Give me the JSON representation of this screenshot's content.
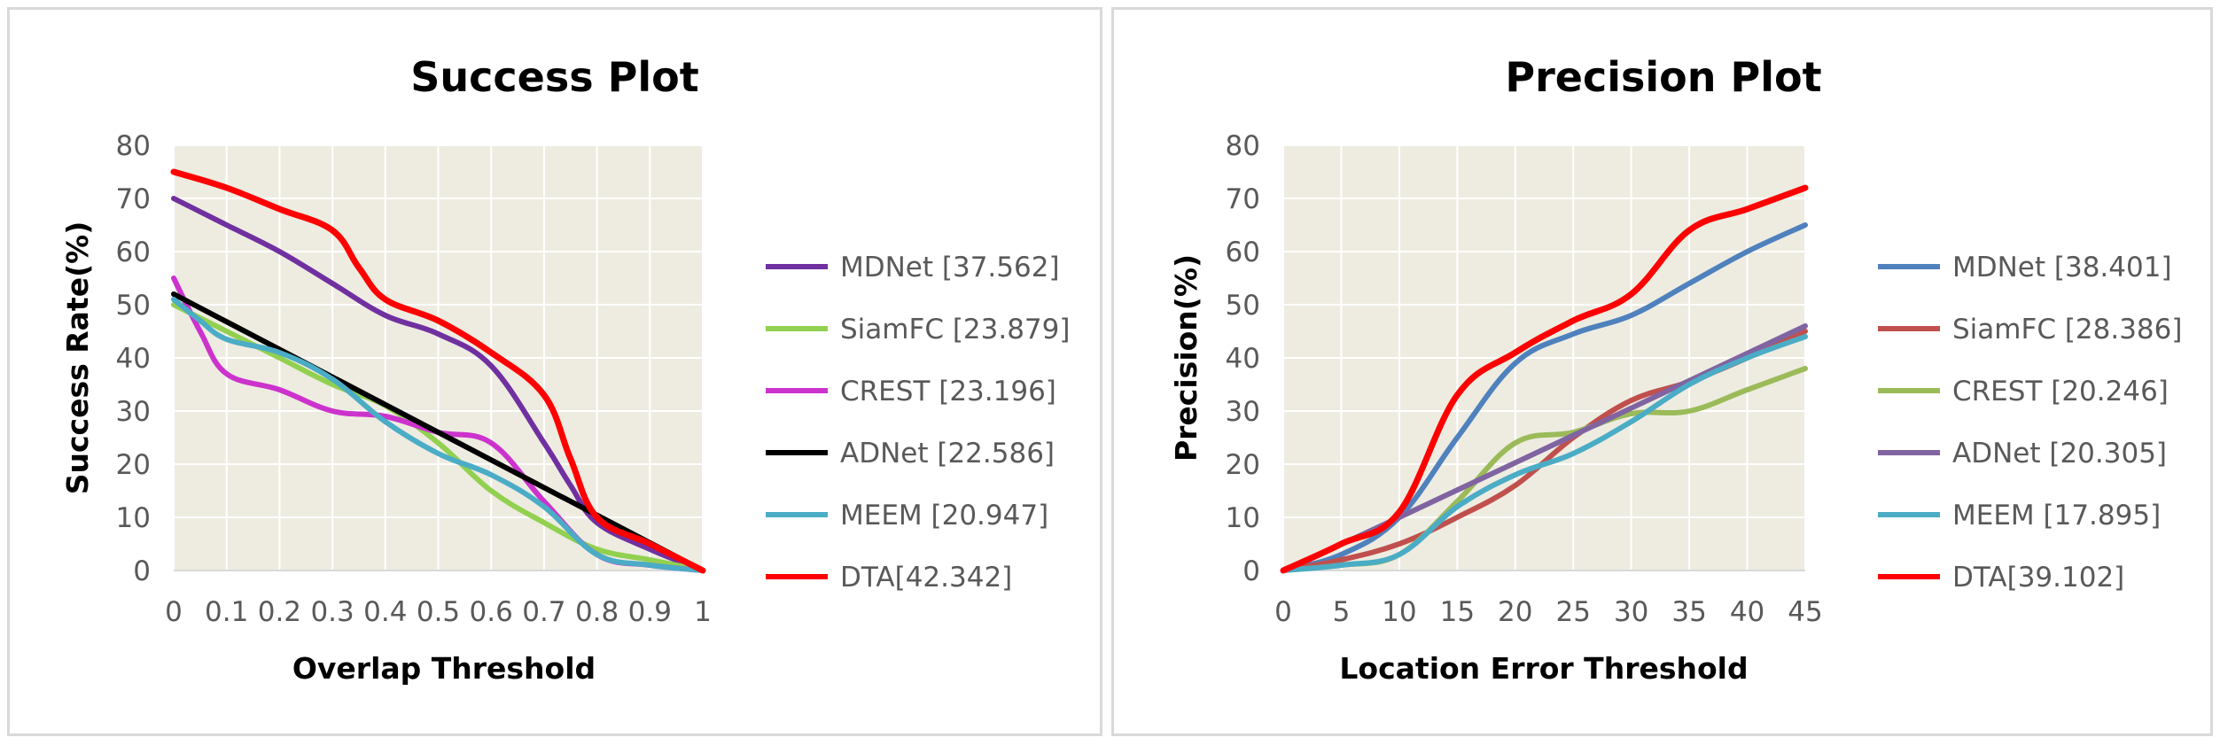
{
  "chart_data": [
    {
      "type": "line",
      "title": "Success Plot",
      "xlabel": "Overlap Threshold",
      "ylabel": "Success Rate(%)",
      "x_ticks": [
        "0",
        "0.1",
        "0.2",
        "0.3",
        "0.4",
        "0.5",
        "0.6",
        "0.7",
        "0.8",
        "0.9",
        "1"
      ],
      "y_ticks": [
        "0",
        "10",
        "20",
        "30",
        "40",
        "50",
        "60",
        "70",
        "80"
      ],
      "xlim": [
        0,
        1
      ],
      "ylim": [
        0,
        80
      ],
      "grid": true,
      "legend": "right",
      "plot_background": "#eeece1",
      "series": [
        {
          "name": "MDNet [37.562]",
          "color": "#7030a0",
          "x": [
            0,
            0.05,
            0.1,
            0.2,
            0.3,
            0.4,
            0.5,
            0.6,
            0.7,
            0.75,
            0.8,
            0.9,
            1
          ],
          "y": [
            70,
            67.5,
            65,
            60,
            54,
            48,
            44.5,
            38.5,
            24,
            16,
            9,
            4,
            0
          ]
        },
        {
          "name": "SiamFC [23.879]",
          "color": "#92d050",
          "x": [
            0,
            0.1,
            0.2,
            0.3,
            0.4,
            0.5,
            0.6,
            0.7,
            0.8,
            0.9,
            1
          ],
          "y": [
            50,
            45,
            40,
            35,
            31,
            24,
            15,
            9,
            4,
            2,
            0
          ]
        },
        {
          "name": "CREST [23.196]",
          "color": "#cc33cc",
          "x": [
            0,
            0.05,
            0.1,
            0.2,
            0.3,
            0.4,
            0.5,
            0.6,
            0.7,
            0.8,
            0.9,
            1
          ],
          "y": [
            55,
            45,
            37,
            34,
            30,
            29,
            26,
            24,
            13,
            3,
            1,
            0
          ]
        },
        {
          "name": "ADNet [22.586]",
          "color": "#000000",
          "x": [
            0,
            1
          ],
          "y": [
            52,
            0
          ]
        },
        {
          "name": "MEEM [20.947]",
          "color": "#4bacc6",
          "x": [
            0,
            0.05,
            0.1,
            0.2,
            0.3,
            0.4,
            0.5,
            0.6,
            0.7,
            0.8,
            0.9,
            1
          ],
          "y": [
            51,
            47,
            43.5,
            41,
            36,
            28,
            22,
            18,
            12,
            3,
            1,
            0
          ]
        },
        {
          "name": "DTA[42.342]",
          "color": "#ff0000",
          "x": [
            0,
            0.1,
            0.2,
            0.3,
            0.35,
            0.4,
            0.5,
            0.6,
            0.7,
            0.75,
            0.8,
            0.9,
            1
          ],
          "y": [
            75,
            72,
            68,
            64,
            57,
            51,
            47,
            41,
            33,
            21,
            10,
            5,
            0
          ]
        }
      ]
    },
    {
      "type": "line",
      "title": "Precision Plot",
      "xlabel": "Location Error Threshold",
      "ylabel": "Precision(%)",
      "x_ticks": [
        "0",
        "5",
        "10",
        "15",
        "20",
        "25",
        "30",
        "35",
        "40",
        "45"
      ],
      "y_ticks": [
        "0",
        "10",
        "20",
        "30",
        "40",
        "50",
        "60",
        "70",
        "80"
      ],
      "xlim": [
        0,
        45
      ],
      "ylim": [
        0,
        80
      ],
      "grid": true,
      "legend": "right",
      "plot_background": "#eeece1",
      "series": [
        {
          "name": "MDNet [38.401]",
          "color": "#4f81bd",
          "x": [
            0,
            5,
            10,
            15,
            20,
            25,
            30,
            35,
            40,
            45
          ],
          "y": [
            0,
            3,
            10,
            25,
            39,
            44.5,
            48,
            54,
            60,
            65
          ]
        },
        {
          "name": "SiamFC [28.386]",
          "color": "#c0504d",
          "x": [
            0,
            5,
            10,
            15,
            20,
            25,
            30,
            35,
            40,
            45
          ],
          "y": [
            0,
            2,
            5,
            10,
            16,
            25,
            32,
            35.5,
            40,
            45
          ]
        },
        {
          "name": "CREST [20.246]",
          "color": "#9bbb59",
          "x": [
            0,
            5,
            10,
            15,
            20,
            25,
            30,
            35,
            40,
            45
          ],
          "y": [
            0,
            1,
            3,
            13,
            24,
            26,
            29.5,
            30,
            34,
            38
          ]
        },
        {
          "name": "ADNet [20.305]",
          "color": "#8064a2",
          "x": [
            0,
            10,
            45
          ],
          "y": [
            0,
            10,
            46
          ]
        },
        {
          "name": "MEEM [17.895]",
          "color": "#4bacc6",
          "x": [
            0,
            5,
            10,
            15,
            20,
            25,
            30,
            35,
            40,
            45
          ],
          "y": [
            0,
            1,
            3,
            12,
            18,
            22,
            28,
            35,
            40,
            44
          ]
        },
        {
          "name": "DTA[39.102]",
          "color": "#ff0000",
          "x": [
            0,
            5,
            10,
            15,
            20,
            25,
            30,
            35,
            40,
            45
          ],
          "y": [
            0,
            5,
            11,
            33,
            41,
            47,
            52,
            64,
            68,
            72
          ]
        }
      ]
    }
  ]
}
